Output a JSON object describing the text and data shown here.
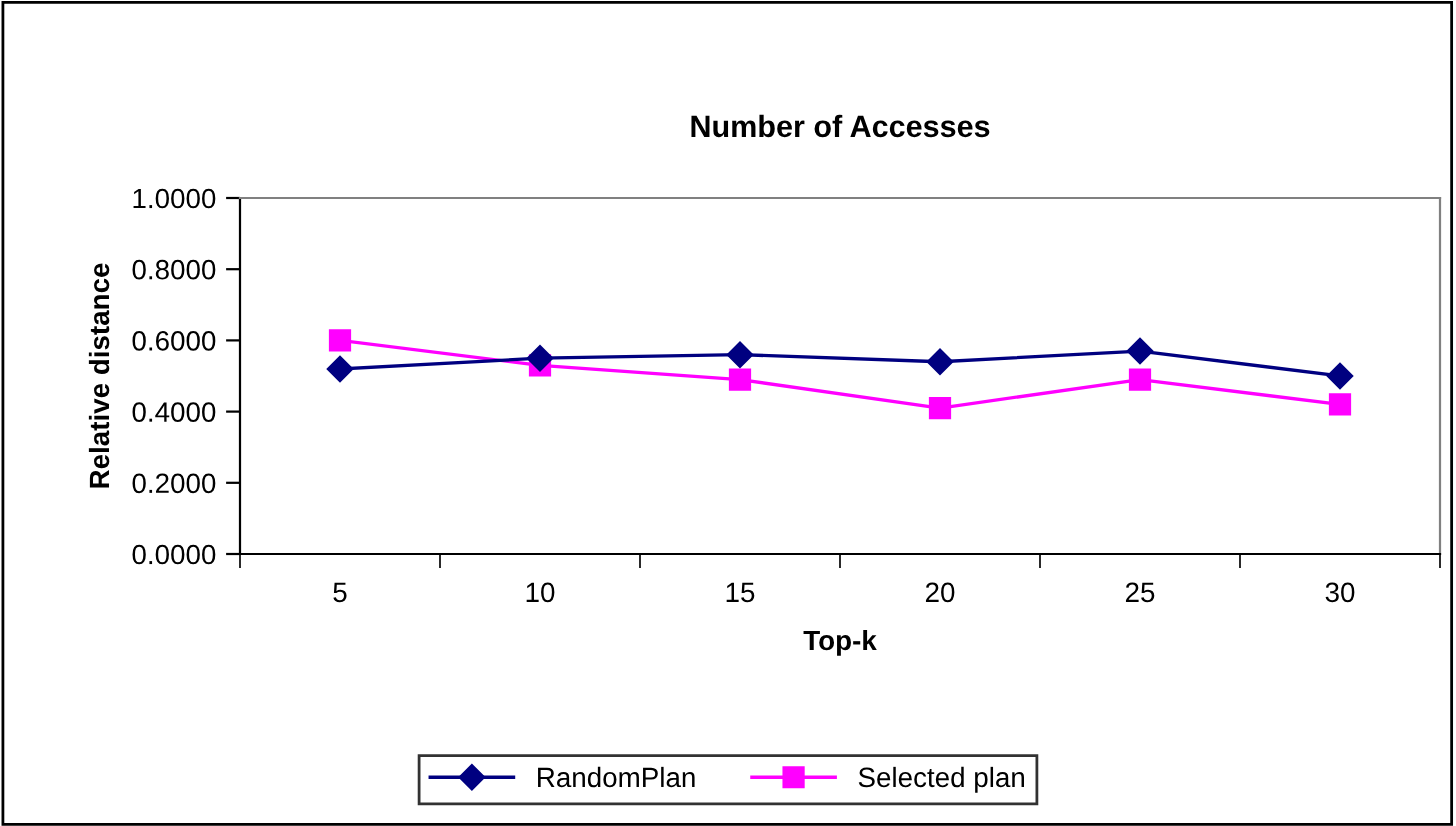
{
  "chart_data": {
    "type": "line",
    "title": "Number of Accesses",
    "xlabel": "Top-k",
    "ylabel": "Relative distance",
    "categories": [
      "5",
      "10",
      "15",
      "20",
      "25",
      "30"
    ],
    "series": [
      {
        "name": "RandomPlan",
        "color": "#000080",
        "marker": "diamond",
        "values": [
          0.52,
          0.55,
          0.56,
          0.54,
          0.57,
          0.5
        ]
      },
      {
        "name": "Selected plan",
        "color": "#ff00ff",
        "marker": "square",
        "values": [
          0.6,
          0.53,
          0.49,
          0.41,
          0.49,
          0.42
        ]
      }
    ],
    "ylim": [
      0,
      1
    ],
    "yticks": [
      {
        "value": 0,
        "label": "0.0000"
      },
      {
        "value": 0.2,
        "label": "0.2000"
      },
      {
        "value": 0.4,
        "label": "0.4000"
      },
      {
        "value": 0.6,
        "label": "0.6000"
      },
      {
        "value": 0.8,
        "label": "0.8000"
      },
      {
        "value": 1,
        "label": "1.0000"
      }
    ],
    "grid": false,
    "legend": "bottom"
  }
}
